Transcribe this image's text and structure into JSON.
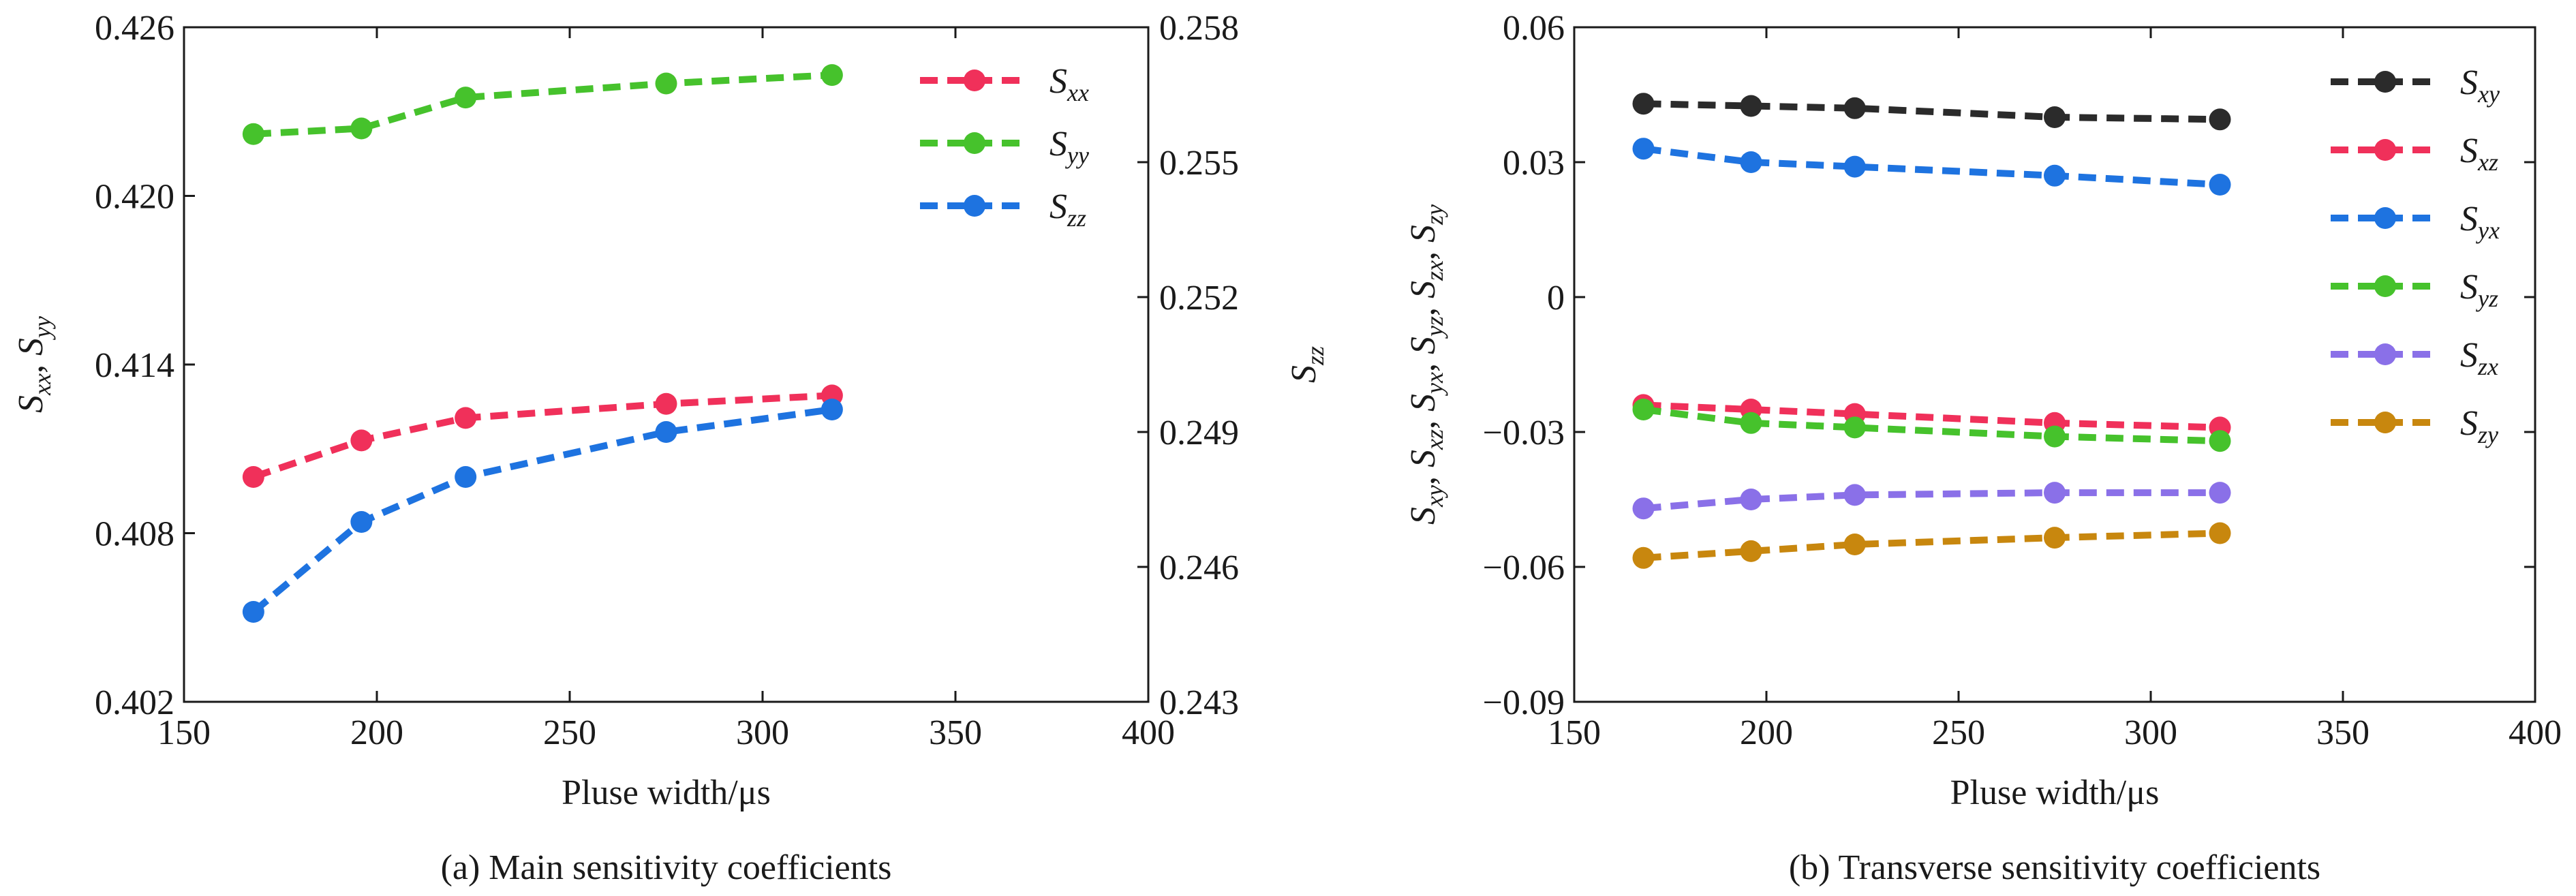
{
  "chart_data": [
    {
      "type": "line",
      "caption": "(a) Main sensitivity coefficients",
      "xlabel": "Pluse width/μs",
      "ylabel_left": {
        "main": "S",
        "parts": [
          [
            "S",
            "xx"
          ],
          [
            "S",
            "yy"
          ]
        ]
      },
      "ylabel_right": {
        "main": "S",
        "sub": "zz"
      },
      "xlim": [
        150,
        400
      ],
      "xticks": [
        "150",
        "200",
        "250",
        "300",
        "350",
        "400"
      ],
      "ylim_left": [
        0.402,
        0.426
      ],
      "yticks_left": [
        "0.402",
        "0.408",
        "0.414",
        "0.420",
        "0.426"
      ],
      "ylim_right": [
        0.243,
        0.258
      ],
      "yticks_right": [
        "0.243",
        "0.246",
        "0.249",
        "0.252",
        "0.255",
        "0.258"
      ],
      "x": [
        168,
        196,
        223,
        275,
        318
      ],
      "series": [
        {
          "name": "S",
          "sub": "xx",
          "axis": "left",
          "color": "#f0305a",
          "values": [
            0.41,
            0.4113,
            0.4121,
            0.4126,
            0.4129
          ]
        },
        {
          "name": "S",
          "sub": "yy",
          "axis": "left",
          "color": "#46c22c",
          "values": [
            0.4222,
            0.4224,
            0.4235,
            0.424,
            0.4243
          ]
        },
        {
          "name": "S",
          "sub": "zz",
          "axis": "right",
          "color": "#1e73e0",
          "values": [
            0.245,
            0.247,
            0.248,
            0.249,
            0.2495
          ]
        }
      ]
    },
    {
      "type": "line",
      "caption": "(b) Transverse sensitivity coefficients",
      "xlabel": "Pluse width/μs",
      "ylabel_left": {
        "main": "S",
        "parts": [
          [
            "S",
            "xy"
          ],
          [
            "S",
            "xz"
          ],
          [
            "S",
            "yx"
          ],
          [
            "S",
            "yz"
          ],
          [
            "S",
            "zx"
          ],
          [
            "S",
            "zy"
          ]
        ]
      },
      "xlim": [
        150,
        400
      ],
      "xticks": [
        "150",
        "200",
        "250",
        "300",
        "350",
        "400"
      ],
      "ylim_left": [
        -0.09,
        0.06
      ],
      "yticks_left": [
        "0.06",
        "0.03",
        "0",
        "−0.03",
        "−0.06",
        "−0.09"
      ],
      "x": [
        168,
        196,
        223,
        275,
        318
      ],
      "series": [
        {
          "name": "S",
          "sub": "xy",
          "color": "#2b2b2b",
          "values": [
            0.043,
            0.0425,
            0.042,
            0.04,
            0.0395
          ]
        },
        {
          "name": "S",
          "sub": "xz",
          "color": "#f0305a",
          "values": [
            -0.024,
            -0.025,
            -0.026,
            -0.028,
            -0.029
          ]
        },
        {
          "name": "S",
          "sub": "yx",
          "color": "#1e73e0",
          "values": [
            0.033,
            0.03,
            0.029,
            0.027,
            0.025
          ]
        },
        {
          "name": "S",
          "sub": "yz",
          "color": "#46c22c",
          "values": [
            -0.025,
            -0.028,
            -0.029,
            -0.031,
            -0.032
          ]
        },
        {
          "name": "S",
          "sub": "zx",
          "color": "#8a70e8",
          "values": [
            -0.047,
            -0.045,
            -0.044,
            -0.0435,
            -0.0435
          ]
        },
        {
          "name": "S",
          "sub": "zy",
          "color": "#c8870e",
          "values": [
            -0.058,
            -0.0565,
            -0.055,
            -0.0535,
            -0.0525
          ]
        }
      ]
    }
  ]
}
